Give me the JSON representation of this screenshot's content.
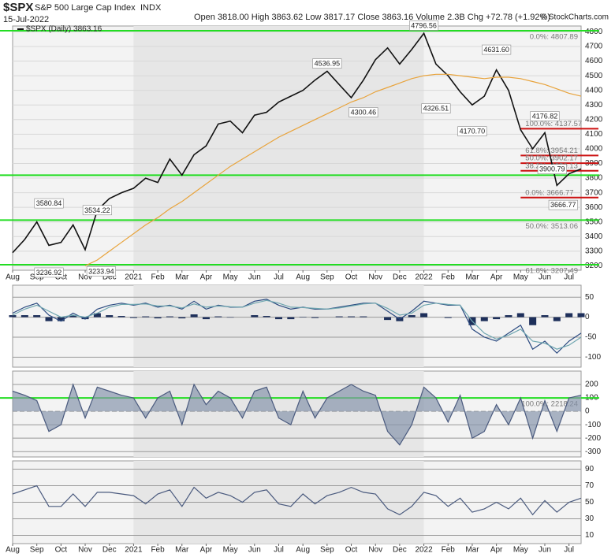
{
  "chart_data": [
    {
      "type": "line",
      "title": "$SPX",
      "subtitle": "S&P 500 Large Cap Index",
      "exchange": "INDX",
      "date": "15-Jul-2022",
      "quote": "Open 3818.00 High 3863.62 Low 3817.17 Close 3863.16 Volume 2.3B Chg +72.78 (+1.92%)",
      "credit": "© StockCharts.com",
      "categories": [
        "Aug",
        null,
        "Sep",
        null,
        "Oct",
        null,
        "Nov",
        null,
        "Dec",
        null,
        "2021",
        null,
        "Feb",
        null,
        "Mar",
        null,
        "Apr",
        null,
        "May",
        null,
        "Jun",
        null,
        "Jul",
        null,
        "Aug",
        null,
        "Sep",
        null,
        "Oct",
        null,
        "Nov",
        null,
        "Dec",
        null,
        "2022",
        null,
        "Feb",
        null,
        "Mar",
        null,
        "Apr",
        null,
        "May",
        null,
        "Jun",
        null,
        "Jul",
        null
      ],
      "series": [
        {
          "name": "$SPX (Daily) 3863.16",
          "color": "#111111",
          "values": [
            3290,
            3380,
            3500,
            3340,
            3360,
            3480,
            3310,
            3580,
            3660,
            3700,
            3730,
            3800,
            3770,
            3930,
            3820,
            3960,
            4020,
            4170,
            4190,
            4110,
            4230,
            4250,
            4320,
            4360,
            4400,
            4470,
            4530,
            4440,
            4350,
            4470,
            4610,
            4690,
            4580,
            4680,
            4790,
            4580,
            4500,
            4390,
            4300,
            4360,
            4540,
            4400,
            4130,
            4000,
            4110,
            3750,
            3830,
            3863
          ]
        },
        {
          "color": "#e8a33b",
          "values": [
            null,
            null,
            null,
            null,
            null,
            null,
            3200,
            3240,
            3300,
            3360,
            3420,
            3480,
            3530,
            3590,
            3640,
            3700,
            3760,
            3820,
            3880,
            3930,
            3980,
            4030,
            4080,
            4120,
            4160,
            4200,
            4240,
            4280,
            4320,
            4350,
            4390,
            4420,
            4450,
            4480,
            4500,
            4510,
            4510,
            4500,
            4490,
            4480,
            4490,
            4490,
            4480,
            4460,
            4440,
            4410,
            4380,
            4360
          ]
        }
      ],
      "annotations": [
        "4796.56",
        "4536.95",
        "4300.46",
        "4326.51",
        "4170.70",
        "4631.60",
        "4176.82",
        "3900.79",
        "3666.77",
        "3580.84",
        "3534.22",
        "3236.92",
        "3233.94"
      ],
      "hlines": [
        {
          "value": 4807.89,
          "label": "0.0%: 4807.89"
        },
        {
          "value": 3820
        },
        {
          "value": 3513.06,
          "label": "50.0%: 3513.06"
        },
        {
          "value": 3207.49,
          "label": "61.8%: 3207.49"
        }
      ],
      "hline_color": "#22dd22",
      "red_lines": [
        {
          "value": 4137.57,
          "label": "100.0%: 4137.57"
        },
        {
          "value": 3954.21,
          "label": "61.8%: 3954.21"
        },
        {
          "value": 3902.17,
          "label": "50.0%: 3902.17"
        },
        {
          "value": 3850.13,
          "label": "38.2%: 3850.13"
        },
        {
          "value": 3666.77,
          "label": "0.0%: 3666.77"
        }
      ],
      "red_color": "#cc1111",
      "ylim": [
        3170,
        4840
      ],
      "yticks": [
        3200,
        3300,
        3400,
        3500,
        3600,
        3700,
        3800,
        3900,
        4000,
        4100,
        4200,
        4300,
        4400,
        4500,
        4600,
        4700,
        4800
      ],
      "grid": true
    },
    {
      "type": "line",
      "series": [
        {
          "color": "#1d2f5a",
          "type": "bar",
          "values": [
            5,
            5,
            5,
            -10,
            -10,
            5,
            -5,
            10,
            5,
            3,
            -2,
            2,
            -3,
            2,
            -3,
            7,
            -5,
            2,
            -1,
            0,
            5,
            3,
            -5,
            -5,
            1,
            -2,
            0,
            2,
            2,
            2,
            0,
            -7,
            -10,
            5,
            10,
            0,
            -2,
            0,
            -20,
            -10,
            -5,
            5,
            10,
            -20,
            5,
            -10,
            10,
            10
          ]
        },
        {
          "color": "#2b4a80",
          "values": [
            10,
            25,
            35,
            5,
            -10,
            10,
            -5,
            20,
            30,
            35,
            30,
            35,
            25,
            30,
            20,
            40,
            20,
            30,
            25,
            25,
            40,
            45,
            30,
            20,
            25,
            20,
            20,
            25,
            30,
            35,
            35,
            15,
            -5,
            15,
            40,
            35,
            30,
            30,
            -30,
            -50,
            -60,
            -40,
            -20,
            -80,
            -60,
            -90,
            -60,
            -40
          ]
        },
        {
          "color": "#6fa6b0",
          "values": [
            5,
            20,
            30,
            15,
            0,
            5,
            0,
            10,
            25,
            32,
            32,
            33,
            28,
            28,
            23,
            33,
            25,
            28,
            26,
            25,
            35,
            42,
            35,
            25,
            24,
            22,
            20,
            23,
            28,
            33,
            35,
            22,
            5,
            10,
            30,
            35,
            32,
            30,
            -10,
            -40,
            -55,
            -45,
            -30,
            -60,
            -65,
            -80,
            -70,
            -50
          ]
        }
      ],
      "ylim": [
        -125,
        80
      ],
      "yticks": [
        50,
        0,
        -50,
        -100
      ],
      "grid": true
    },
    {
      "type": "line",
      "series": [
        {
          "color": "#4a5a7e",
          "fill": "#8895ad",
          "values": [
            150,
            120,
            80,
            -150,
            -100,
            200,
            -50,
            180,
            150,
            120,
            100,
            -50,
            100,
            150,
            -100,
            200,
            50,
            150,
            100,
            -50,
            150,
            180,
            -50,
            -100,
            150,
            -50,
            100,
            150,
            200,
            150,
            120,
            -150,
            -250,
            -100,
            180,
            100,
            -80,
            120,
            -200,
            -150,
            50,
            -100,
            100,
            -200,
            80,
            -150,
            100,
            120
          ]
        }
      ],
      "hlines": [
        {
          "value": 100,
          "label": "100.0%: 2218.24"
        }
      ],
      "hline_color": "#22dd22",
      "ylim": [
        -340,
        300
      ],
      "yticks": [
        200,
        100,
        0,
        -100,
        -200,
        -300
      ],
      "grid": true
    },
    {
      "type": "line",
      "categories": [
        "Aug",
        null,
        "Sep",
        null,
        "Oct",
        null,
        "Nov",
        null,
        "Dec",
        null,
        "2021",
        null,
        "Feb",
        null,
        "Mar",
        null,
        "Apr",
        null,
        "May",
        null,
        "Jun",
        null,
        "Jul",
        null,
        "Aug",
        null,
        "Sep",
        null,
        "Oct",
        null,
        "Nov",
        null,
        "Dec",
        null,
        "2022",
        null,
        "Feb",
        null,
        "Mar",
        null,
        "Apr",
        null,
        "May",
        null,
        "Jun",
        null,
        "Jul",
        null
      ],
      "series": [
        {
          "color": "#4a5a7e",
          "values": [
            60,
            65,
            70,
            45,
            45,
            60,
            45,
            62,
            62,
            60,
            58,
            48,
            60,
            65,
            45,
            68,
            55,
            62,
            58,
            50,
            62,
            65,
            48,
            45,
            60,
            48,
            58,
            62,
            68,
            62,
            60,
            42,
            35,
            45,
            62,
            58,
            45,
            55,
            38,
            42,
            50,
            42,
            55,
            35,
            52,
            38,
            50,
            55
          ]
        }
      ],
      "ylim": [
        0,
        100
      ],
      "yticks": [
        90,
        70,
        50,
        30,
        10
      ],
      "grid": true
    }
  ]
}
